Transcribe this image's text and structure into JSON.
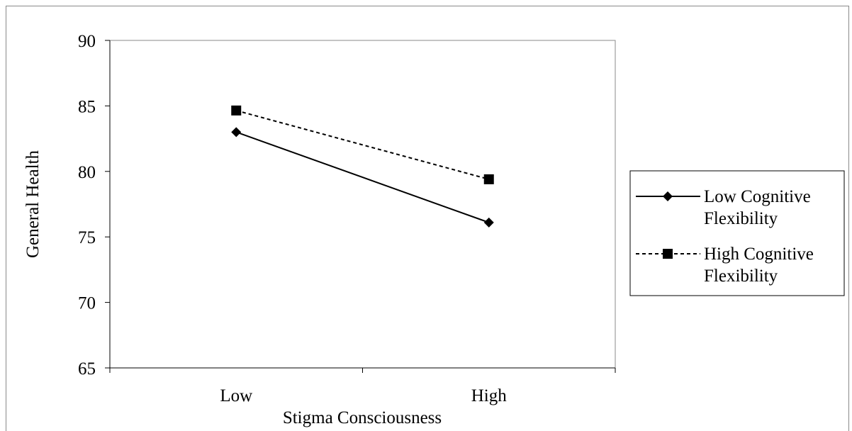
{
  "chart_data": {
    "type": "line",
    "categories": [
      "Low",
      "High"
    ],
    "series": [
      {
        "name": "Low Cognitive Flexibility",
        "values": [
          83.0,
          76.1
        ],
        "marker": "diamond",
        "line": "solid",
        "color": "#000000"
      },
      {
        "name": "High Cognitive Flexibility",
        "values": [
          84.65,
          79.4
        ],
        "marker": "square",
        "line": "dashed",
        "color": "#000000"
      }
    ],
    "xlabel": "Stigma Consciousness",
    "ylabel": "General Health",
    "ylim": [
      65,
      90
    ],
    "yticks": [
      65,
      70,
      75,
      80,
      85,
      90
    ],
    "grid": false,
    "legend": "right"
  }
}
